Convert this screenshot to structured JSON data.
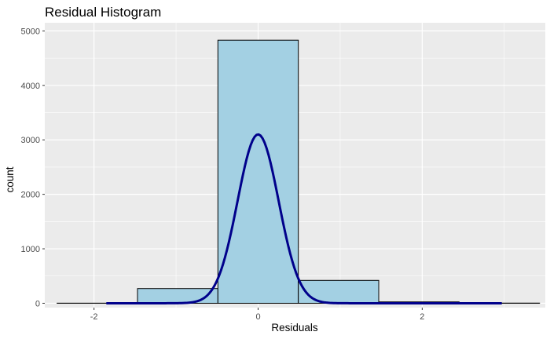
{
  "chart_data": {
    "type": "bar",
    "title": "Residual Histogram",
    "xlabel": "Residuals",
    "ylabel": "count",
    "xlim": [
      -2.6,
      3.5
    ],
    "ylim": [
      -80,
      5150
    ],
    "x_ticks": [
      -2,
      0,
      2
    ],
    "x_tick_labels": [
      "-2",
      "0",
      "2"
    ],
    "y_ticks": [
      0,
      1000,
      2000,
      3000,
      4000,
      5000
    ],
    "y_tick_labels": [
      "0",
      "1000",
      "2000",
      "3000",
      "4000",
      "5000"
    ],
    "grid": true,
    "legend": "none",
    "bins": [
      {
        "x0": -2.45,
        "x1": -1.47,
        "count": 2
      },
      {
        "x0": -1.47,
        "x1": -0.49,
        "count": 270
      },
      {
        "x0": -0.49,
        "x1": 0.49,
        "count": 4830
      },
      {
        "x0": 0.49,
        "x1": 1.47,
        "count": 420
      },
      {
        "x0": 1.47,
        "x1": 2.45,
        "count": 25
      },
      {
        "x0": 2.45,
        "x1": 3.43,
        "count": 3
      }
    ],
    "density_curve": {
      "mean": 0.0,
      "sd": 0.25,
      "peak": 3100,
      "x_range": [
        -1.85,
        2.97
      ]
    },
    "colors": {
      "bar_fill": "#a3d0e3",
      "bar_stroke": "#000000",
      "curve": "#00008b",
      "panel": "#ebebeb",
      "grid": "#ffffff"
    }
  }
}
